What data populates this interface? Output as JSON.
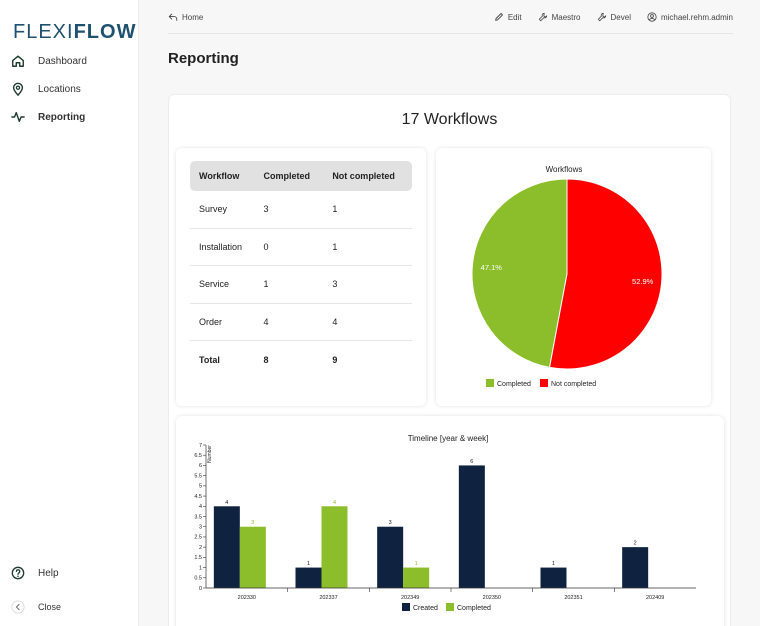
{
  "logo": {
    "part1": "FLEXI",
    "part2": "FLOW"
  },
  "sidebar": {
    "items": [
      {
        "label": "Dashboard",
        "icon": "home-icon"
      },
      {
        "label": "Locations",
        "icon": "location-pin-icon"
      },
      {
        "label": "Reporting",
        "icon": "activity-icon"
      }
    ],
    "help_label": "Help",
    "close_label": "Close"
  },
  "topbar": {
    "home_label": "Home",
    "actions": [
      {
        "label": "Edit",
        "icon": "pencil-icon"
      },
      {
        "label": "Maestro",
        "icon": "wrench-icon"
      },
      {
        "label": "Devel",
        "icon": "wrench-icon"
      },
      {
        "label": "michael.rehm.admin",
        "icon": "user-circle-icon"
      }
    ]
  },
  "page_title": "Reporting",
  "workflows_title": "17 Workflows",
  "table": {
    "headers": [
      "Workflow",
      "Completed",
      "Not completed"
    ],
    "rows": [
      [
        "Survey",
        "3",
        "1"
      ],
      [
        "Installation",
        "0",
        "1"
      ],
      [
        "Service",
        "1",
        "3"
      ],
      [
        "Order",
        "4",
        "4"
      ]
    ],
    "total": [
      "Total",
      "8",
      "9"
    ]
  },
  "colors": {
    "navy": "#0f2340",
    "green": "#8cbd2a",
    "red": "#ff0000"
  },
  "chart_data": [
    {
      "type": "pie",
      "title": "Workflows",
      "labels": [
        "Completed",
        "Not completed"
      ],
      "values": [
        8,
        9
      ],
      "slice_labels": [
        "47.1%",
        "52.9%"
      ],
      "legend": "bottom"
    },
    {
      "type": "bar",
      "title": "Timeline [year & week]",
      "ylabel": "Number",
      "categories": [
        "202330",
        "202337",
        "202349",
        "202350",
        "202351",
        "202409"
      ],
      "ylim": [
        0,
        7
      ],
      "yticks": [
        "0",
        "0.5",
        "1",
        "1.5",
        "2",
        "2.5",
        "3",
        "3.5",
        "4",
        "4.5",
        "5",
        "5.5",
        "6",
        "6.5",
        "7"
      ],
      "series": [
        {
          "name": "Created",
          "values": [
            4,
            1,
            3,
            6,
            1,
            2
          ],
          "labels": [
            "4",
            "1",
            "3",
            "6",
            "1",
            "2"
          ]
        },
        {
          "name": "Completed",
          "values": [
            3,
            4,
            1,
            0,
            0,
            0
          ],
          "labels": [
            "3",
            "4",
            "1",
            "",
            "",
            ""
          ]
        }
      ],
      "legend": "bottom"
    }
  ]
}
